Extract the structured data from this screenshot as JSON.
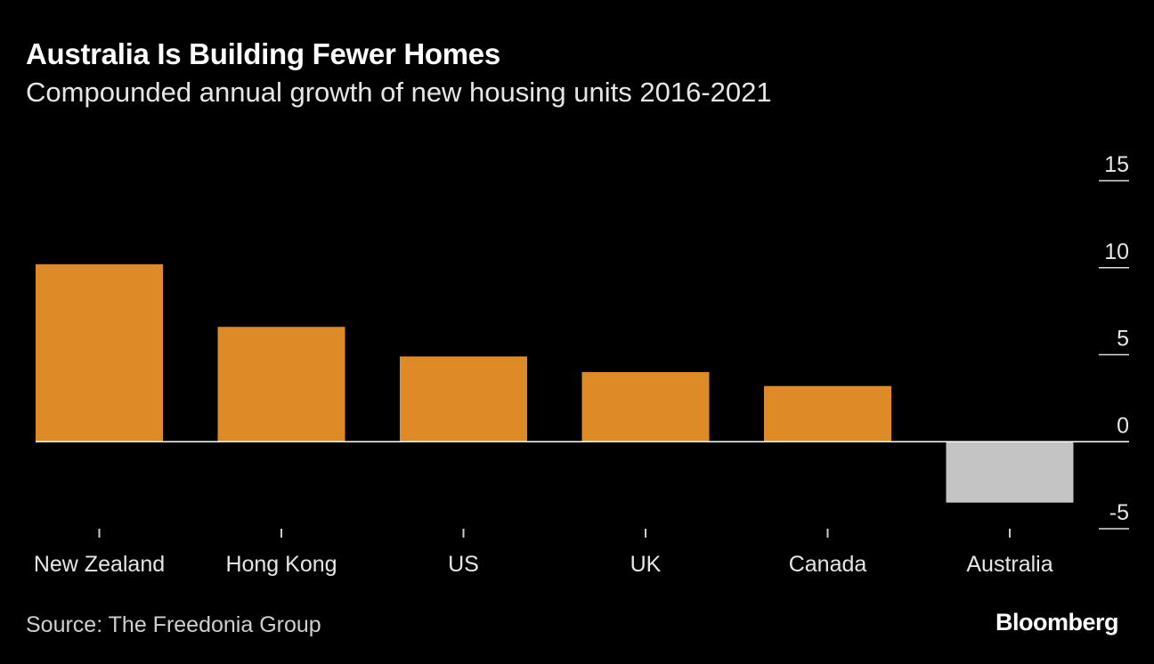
{
  "header": {
    "title": "Australia Is Building Fewer Homes",
    "subtitle": "Compounded annual growth of new housing units 2016-2021"
  },
  "footer": {
    "source": "Source: The Freedonia Group",
    "logo": "Bloomberg"
  },
  "colors": {
    "background": "#000000",
    "positive_bar": "#dd8a27",
    "negative_bar": "#c4c4c4",
    "axis": "#ffffff",
    "tick_text": "#e6e6e6"
  },
  "chart_data": {
    "type": "bar",
    "categories": [
      "New Zealand",
      "Hong Kong",
      "US",
      "UK",
      "Canada",
      "Australia"
    ],
    "values": [
      10.2,
      6.6,
      4.9,
      4.0,
      3.2,
      -3.5
    ],
    "ylim": [
      -5,
      15
    ],
    "yticks": [
      "15",
      "10",
      "5",
      "0",
      "-5"
    ],
    "ytick_values": [
      15,
      10,
      5,
      0,
      -5
    ],
    "axis_side": "right",
    "grid": false
  }
}
